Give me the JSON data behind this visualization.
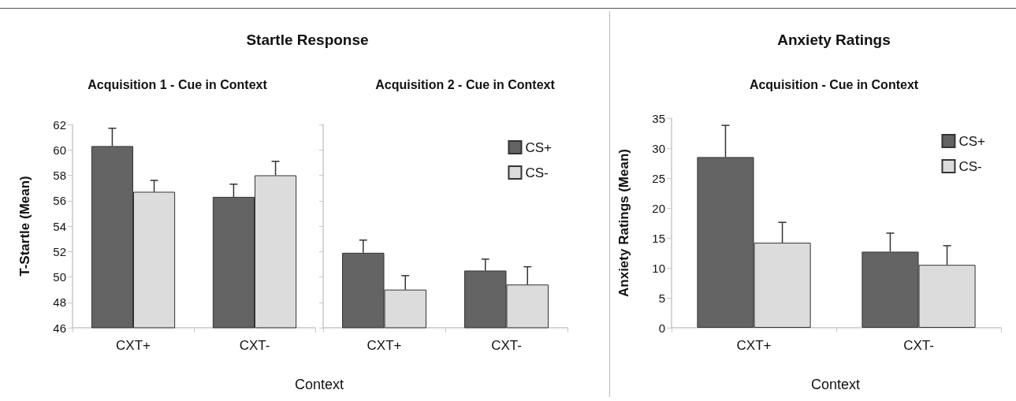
{
  "chart_data": [
    {
      "type": "bar",
      "title": "Startle Response",
      "subtitle": "Acquisition 1 - Cue in Context",
      "xlabel": "Context",
      "ylabel": "T-Startle (Mean)",
      "categories": [
        "CXT+",
        "CXT-"
      ],
      "ylim": [
        46,
        62
      ],
      "yticks": [
        46,
        48,
        50,
        52,
        54,
        56,
        58,
        60,
        62
      ],
      "series": [
        {
          "color": "#646464",
          "values": [
            60.3,
            56.3
          ],
          "errors": [
            [
              60.3,
              61.7
            ],
            [
              56.3,
              57.3
            ]
          ]
        },
        {
          "color": "#dcdcdc",
          "values": [
            56.7,
            58.0
          ],
          "errors": [
            [
              56.7,
              57.6
            ],
            [
              58.0,
              59.1
            ]
          ]
        }
      ]
    },
    {
      "type": "bar",
      "subtitle": "Acquisition 2 - Cue in Context",
      "categories": [
        "CXT+",
        "CXT-"
      ],
      "ylim": [
        46,
        62
      ],
      "yticks": [
        46,
        48,
        50,
        52,
        54,
        56,
        58,
        60,
        62
      ],
      "tick_labels": "x",
      "legend": "top right",
      "series": [
        {
          "name": "CS+",
          "color": "#646464",
          "values": [
            51.9,
            50.5
          ],
          "errors": [
            [
              51.9,
              52.9
            ],
            [
              50.5,
              51.4
            ]
          ]
        },
        {
          "name": "CS-",
          "color": "#dcdcdc",
          "values": [
            49.0,
            49.4
          ],
          "errors": [
            [
              49.0,
              50.1
            ],
            [
              49.4,
              50.8
            ]
          ]
        }
      ]
    },
    {
      "type": "bar",
      "title": "Anxiety Ratings",
      "subtitle": "Acquisition - Cue in Context",
      "xlabel": "Context",
      "ylabel": "Anxiety Ratings (Mean)",
      "categories": [
        "CXT+",
        "CXT-"
      ],
      "ylim": [
        0,
        35
      ],
      "yticks": [
        0,
        5,
        10,
        15,
        20,
        25,
        30,
        35
      ],
      "legend": "top right",
      "series": [
        {
          "name": "CS+",
          "color": "#646464",
          "values": [
            28.5,
            12.7
          ],
          "errors": [
            [
              28.5,
              33.8
            ],
            [
              12.7,
              15.8
            ]
          ]
        },
        {
          "name": "CS-",
          "color": "#dcdcdc",
          "values": [
            14.2,
            10.5
          ],
          "errors": [
            [
              14.2,
              17.6
            ],
            [
              10.5,
              13.7
            ]
          ]
        }
      ]
    }
  ]
}
